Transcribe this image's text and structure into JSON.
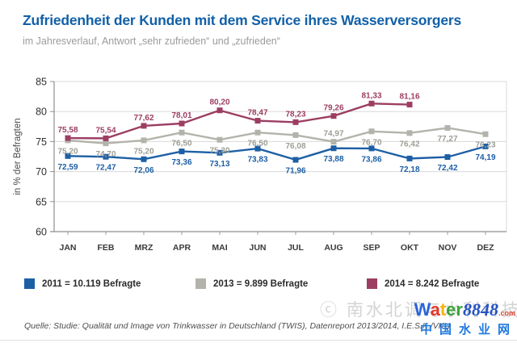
{
  "page": {
    "title": "Zufriedenheit der Kunden mit dem Service ihres Wasserversorgers",
    "subtitle": "im Jahresverlauf, Antwort „sehr zufrieden“ und „zufrieden“"
  },
  "chart_data": {
    "type": "line",
    "title": "Zufriedenheit der Kunden mit dem Service ihres Wasserversorgers",
    "subtitle": "im Jahresverlauf, Antwort „sehr zufrieden“ und „zufrieden“",
    "ylabel": "in % der Befragten",
    "xlabel": "",
    "ylim": [
      60,
      85
    ],
    "ytick_step": 5,
    "grid": true,
    "legend_position": "bottom",
    "decimal_separator": ",",
    "marker": "square",
    "categories": [
      "JAN",
      "FEB",
      "MRZ",
      "APR",
      "MAI",
      "JUN",
      "JUL",
      "AUG",
      "SEP",
      "OKT",
      "NOV",
      "DEZ"
    ],
    "series": [
      {
        "name": "2011 = 10.119 Befragte",
        "color": "#1d5fa5",
        "label_color": "#1d5fa5",
        "label_side": "below",
        "label_side_overrides": {},
        "values": [
          72.59,
          72.47,
          72.06,
          73.36,
          73.13,
          73.83,
          71.96,
          73.88,
          73.86,
          72.18,
          72.42,
          74.19
        ]
      },
      {
        "name": "2013 = 9.899 Befragte",
        "color": "#b3b3ab",
        "label_color": "#9e9e96",
        "label_side": "below",
        "label_side_overrides": {
          "7": "above"
        },
        "values": [
          75.2,
          74.7,
          75.2,
          76.5,
          75.3,
          76.5,
          76.08,
          74.97,
          76.7,
          76.42,
          77.27,
          76.23
        ]
      },
      {
        "name": "2014 = 8.242 Befragte",
        "color": "#9c3e62",
        "label_color": "#9c3e62",
        "label_side": "above",
        "label_side_overrides": {},
        "values": [
          75.58,
          75.54,
          77.62,
          78.01,
          80.2,
          78.47,
          78.23,
          79.26,
          81.33,
          81.16,
          null,
          null
        ]
      }
    ]
  },
  "footer": {
    "source": "Quelle: Studie: Qualität und Image von Trinkwasser in Deutschland (TWIS), Datenreport 2013/2014, I.E.S.K./VKU"
  },
  "watermark": {
    "faint_text": "ⓒ 南水北调与水利科技",
    "logo_letters": [
      {
        "ch": "W",
        "color": "#2b64d9"
      },
      {
        "ch": "a",
        "color": "#e4372b"
      },
      {
        "ch": "t",
        "color": "#f2b50a"
      },
      {
        "ch": "e",
        "color": "#3ba23a"
      },
      {
        "ch": "r",
        "color": "#3ba23a"
      }
    ],
    "logo_number": "8848",
    "logo_tld": ".com",
    "cn_text": "中国水业网"
  }
}
